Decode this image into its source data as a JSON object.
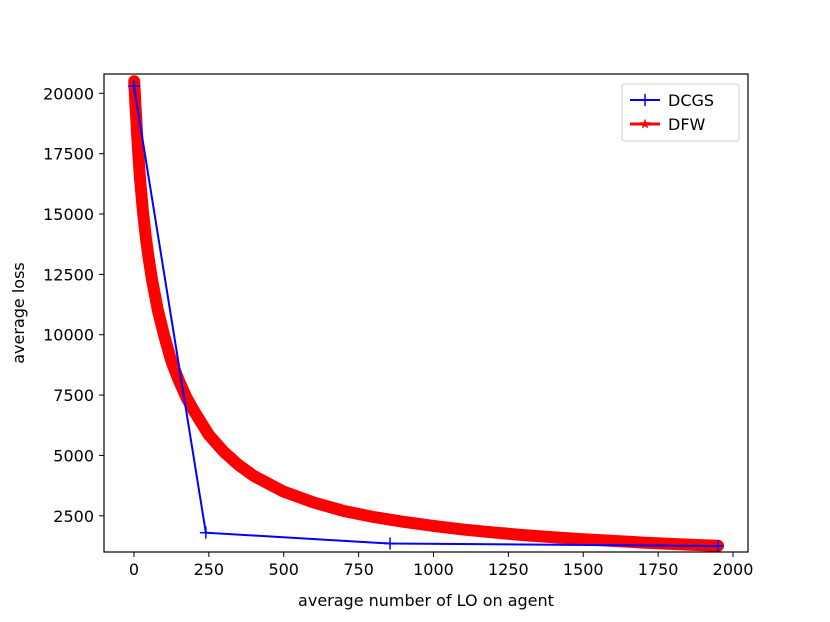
{
  "chart_data": {
    "type": "line",
    "title": "",
    "xlabel": "average number of LO on agent",
    "ylabel": "average loss",
    "xlim": [
      -100,
      2050
    ],
    "ylim": [
      1000,
      20800
    ],
    "xticks": [
      0,
      250,
      500,
      750,
      1000,
      1250,
      1500,
      1750,
      2000
    ],
    "yticks": [
      2500,
      5000,
      7500,
      10000,
      12500,
      15000,
      17500,
      20000
    ],
    "grid": false,
    "legend_position": "top-right",
    "series": [
      {
        "name": "DCGS",
        "color": "#0000ff",
        "marker": "plus",
        "x": [
          0,
          240,
          855,
          1950
        ],
        "y": [
          20300,
          1800,
          1350,
          1250
        ]
      },
      {
        "name": "DFW",
        "color": "#ff0000",
        "marker": "star",
        "x": [
          1,
          2,
          3,
          5,
          8,
          10,
          15,
          20,
          30,
          40,
          50,
          60,
          80,
          100,
          125,
          150,
          175,
          200,
          250,
          300,
          350,
          400,
          500,
          600,
          700,
          800,
          900,
          1000,
          1100,
          1200,
          1300,
          1400,
          1500,
          1600,
          1700,
          1800,
          1900,
          1950
        ],
        "y": [
          20500,
          20200,
          20000,
          19500,
          18900,
          18400,
          17400,
          16500,
          15100,
          14000,
          13100,
          12300,
          11000,
          10000,
          8900,
          8100,
          7400,
          6850,
          5850,
          5150,
          4600,
          4150,
          3500,
          3050,
          2700,
          2450,
          2250,
          2080,
          1930,
          1810,
          1700,
          1610,
          1530,
          1460,
          1390,
          1330,
          1280,
          1260
        ]
      }
    ]
  }
}
